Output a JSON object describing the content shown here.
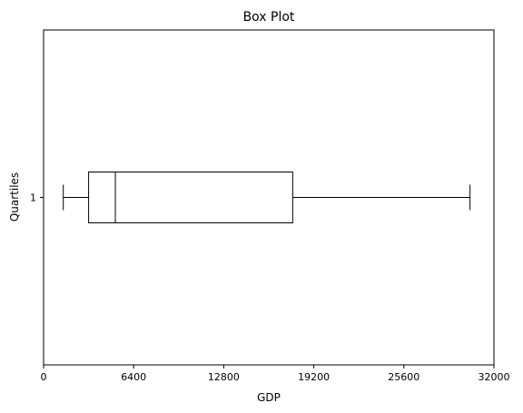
{
  "chart_data": {
    "type": "boxplot",
    "orientation": "horizontal",
    "title": "Box Plot",
    "xlabel": "GDP",
    "ylabel": "Quartiles",
    "xlim": [
      0,
      32000
    ],
    "x_ticks": [
      "0",
      "6400",
      "12800",
      "19200",
      "25600",
      "32000"
    ],
    "x_tick_values": [
      0,
      6400,
      12800,
      19200,
      25600,
      32000
    ],
    "y_ticks": [
      "1"
    ],
    "boxes": [
      {
        "label": "1",
        "whisker_low": 1400,
        "q1": 3200,
        "median": 5100,
        "q3": 17700,
        "whisker_high": 30300
      }
    ],
    "grid": false
  }
}
